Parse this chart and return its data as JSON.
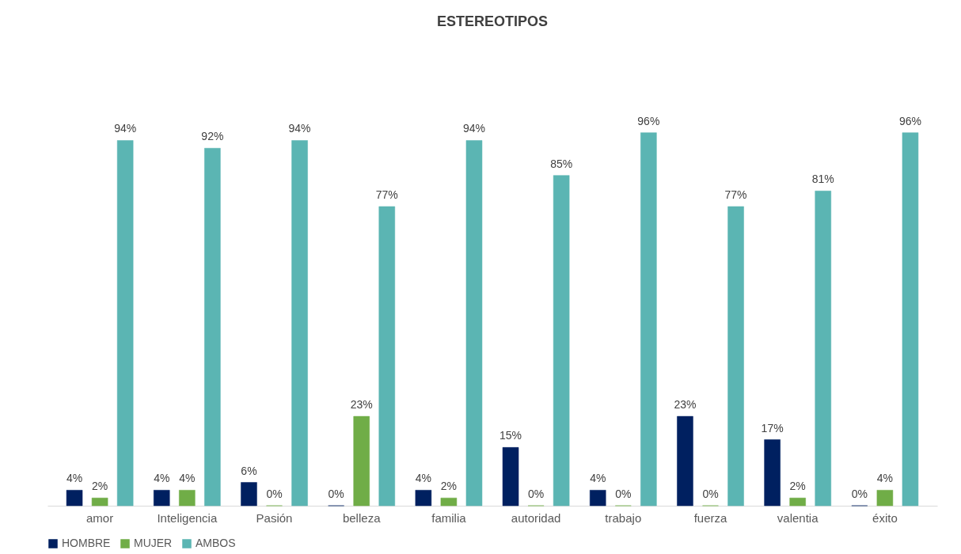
{
  "chart_data": {
    "type": "bar",
    "title": "ESTEREOTIPOS",
    "categories": [
      "amor",
      "Inteligencia",
      "Pasión",
      "belleza",
      "familia",
      "autoridad",
      "trabajo",
      "fuerza",
      "valentia",
      "éxito"
    ],
    "series": [
      {
        "name": "HOMBRE",
        "color": "#002060",
        "values": [
          4,
          4,
          6,
          0,
          4,
          15,
          4,
          23,
          17,
          0
        ],
        "value_labels": [
          "4%",
          "4%",
          "6%",
          "0%",
          "4%",
          "15%",
          "4%",
          "23%",
          "17%",
          "0%"
        ]
      },
      {
        "name": "MUJER",
        "color": "#70ad47",
        "values": [
          2,
          4,
          0,
          23,
          2,
          0,
          0,
          0,
          2,
          4
        ],
        "value_labels": [
          "2%",
          "4%",
          "0%",
          "23%",
          "2%",
          "0%",
          "0%",
          "0%",
          "2%",
          "4%"
        ]
      },
      {
        "name": "AMBOS",
        "color": "#5bb5b3",
        "values": [
          94,
          92,
          94,
          77,
          94,
          85,
          96,
          77,
          81,
          96
        ],
        "value_labels": [
          "94%",
          "92%",
          "94%",
          "77%",
          "94%",
          "85%",
          "96%",
          "77%",
          "81%",
          "96%"
        ]
      }
    ],
    "legend": "bottom",
    "grid": false,
    "tick_labels": "x"
  }
}
